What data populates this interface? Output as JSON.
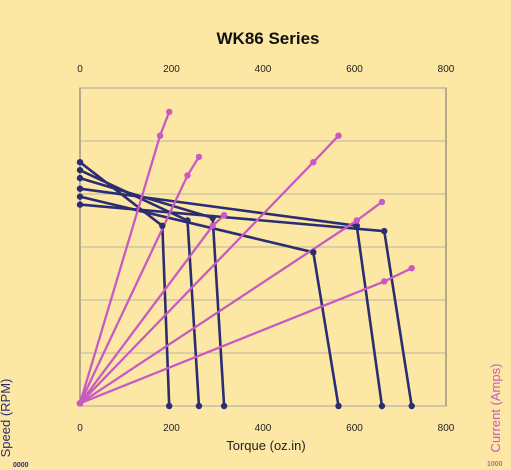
{
  "chart_data": {
    "type": "line",
    "title": "WK86 Series",
    "xlabel": "Torque (oz.in)",
    "ylabel_left": "Speed (RPM)",
    "ylabel_right": "Current (Amps)",
    "x_ticks": [
      "0",
      "200",
      "400",
      "600",
      "800"
    ],
    "xlim": [
      0,
      800
    ],
    "ylim": [
      0,
      6
    ],
    "grid": true,
    "left_tick_cut_label": "0000",
    "right_tick_cut_label": "1000",
    "colors": {
      "speed": "#2b2d73",
      "current": "#c85ac2",
      "background": "#fde7a4",
      "plot_background": "#fde7a4",
      "grid": "#a6a6a6"
    },
    "series": [
      {
        "kind": "speed",
        "points": [
          {
            "x": 0,
            "y": 4.6
          },
          {
            "x": 180,
            "y": 3.4
          },
          {
            "x": 195,
            "y": 0
          }
        ]
      },
      {
        "kind": "speed",
        "points": [
          {
            "x": 0,
            "y": 4.45
          },
          {
            "x": 235,
            "y": 3.5
          },
          {
            "x": 260,
            "y": 0
          }
        ]
      },
      {
        "kind": "speed",
        "points": [
          {
            "x": 0,
            "y": 4.3
          },
          {
            "x": 290,
            "y": 3.55
          },
          {
            "x": 315,
            "y": 0
          }
        ]
      },
      {
        "kind": "speed",
        "points": [
          {
            "x": 0,
            "y": 3.95
          },
          {
            "x": 510,
            "y": 2.9
          },
          {
            "x": 565,
            "y": 0
          }
        ]
      },
      {
        "kind": "speed",
        "points": [
          {
            "x": 0,
            "y": 4.1
          },
          {
            "x": 605,
            "y": 3.4
          },
          {
            "x": 660,
            "y": 0
          }
        ]
      },
      {
        "kind": "speed",
        "points": [
          {
            "x": 0,
            "y": 3.8
          },
          {
            "x": 665,
            "y": 3.3
          },
          {
            "x": 725,
            "y": 0
          }
        ]
      },
      {
        "kind": "current",
        "points": [
          {
            "x": 0,
            "y": 0.05
          },
          {
            "x": 175,
            "y": 5.1
          },
          {
            "x": 195,
            "y": 5.55
          }
        ]
      },
      {
        "kind": "current",
        "points": [
          {
            "x": 0,
            "y": 0.05
          },
          {
            "x": 235,
            "y": 4.35
          },
          {
            "x": 260,
            "y": 4.7
          }
        ]
      },
      {
        "kind": "current",
        "points": [
          {
            "x": 0,
            "y": 0.05
          },
          {
            "x": 290,
            "y": 3.4
          },
          {
            "x": 315,
            "y": 3.6
          }
        ]
      },
      {
        "kind": "current",
        "points": [
          {
            "x": 0,
            "y": 0.05
          },
          {
            "x": 510,
            "y": 4.6
          },
          {
            "x": 565,
            "y": 5.1
          }
        ]
      },
      {
        "kind": "current",
        "points": [
          {
            "x": 0,
            "y": 0.05
          },
          {
            "x": 605,
            "y": 3.5
          },
          {
            "x": 660,
            "y": 3.85
          }
        ]
      },
      {
        "kind": "current",
        "points": [
          {
            "x": 0,
            "y": 0.05
          },
          {
            "x": 665,
            "y": 2.35
          },
          {
            "x": 725,
            "y": 2.6
          }
        ]
      }
    ]
  }
}
